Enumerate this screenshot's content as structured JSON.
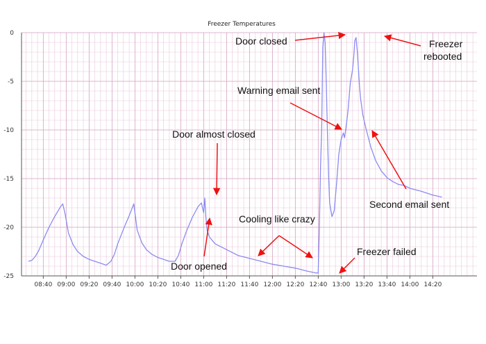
{
  "chart_data": {
    "type": "line",
    "title": "Freezer Temperatures",
    "xlabel": "",
    "ylabel": "",
    "ylim": [
      -25,
      0
    ],
    "y_ticks": [
      0,
      -5,
      -10,
      -15,
      -20,
      -25
    ],
    "x_tick_labels": [
      "08:40",
      "09:00",
      "09:20",
      "09:40",
      "10:00",
      "10:20",
      "10:40",
      "11:00",
      "11:20",
      "11:40",
      "12:00",
      "12:20",
      "12:40",
      "13:00",
      "13:20",
      "13:40",
      "14:00",
      "14:20"
    ],
    "grid": true,
    "colors": {
      "line": "#8a8af0",
      "arrow": "#ee1111",
      "grid": "#e8c8dc"
    },
    "series": [
      {
        "x": [
          "08:27",
          "08:30",
          "08:33",
          "08:36",
          "08:40",
          "08:45",
          "08:50",
          "08:55",
          "08:57",
          "08:59",
          "09:02",
          "09:06",
          "09:10",
          "09:15",
          "09:20",
          "09:25",
          "09:30",
          "09:35",
          "09:39",
          "09:42",
          "09:45",
          "09:50",
          "09:55",
          "09:59",
          "10:02",
          "10:06",
          "10:10",
          "10:15",
          "10:20",
          "10:25",
          "10:30",
          "10:35",
          "10:38",
          "10:41",
          "10:45",
          "10:50",
          "10:55",
          "10:58",
          "11:00",
          "11:01",
          "11:02",
          "11:03",
          "11:05",
          "11:10",
          "11:20",
          "11:30",
          "11:40",
          "11:50",
          "12:00",
          "12:10",
          "12:20",
          "12:30",
          "12:38",
          "12:40",
          "12:41",
          "12:42",
          "12:43",
          "12:44",
          "12:45",
          "12:46",
          "12:47",
          "12:48",
          "12:49",
          "12:50",
          "12:52",
          "12:54",
          "12:56",
          "12:58",
          "13:00",
          "13:02",
          "13:03",
          "13:04",
          "13:06",
          "13:08",
          "13:10",
          "13:11",
          "13:12",
          "13:13",
          "13:14",
          "13:15",
          "13:16",
          "13:17",
          "13:19",
          "13:22",
          "13:26",
          "13:30",
          "13:35",
          "13:40",
          "13:45",
          "13:50",
          "13:55",
          "14:00",
          "14:10",
          "14:20",
          "14:28"
        ],
        "y": [
          -23.5,
          -23.4,
          -23.0,
          -22.4,
          -21.3,
          -20.0,
          -18.9,
          -17.9,
          -17.6,
          -18.6,
          -20.6,
          -21.8,
          -22.5,
          -23.0,
          -23.3,
          -23.5,
          -23.7,
          -23.9,
          -23.5,
          -22.8,
          -21.7,
          -20.2,
          -18.8,
          -17.6,
          -20.3,
          -21.6,
          -22.3,
          -22.8,
          -23.1,
          -23.3,
          -23.5,
          -23.5,
          -22.9,
          -21.7,
          -20.4,
          -19.0,
          -17.9,
          -17.5,
          -18.5,
          -17.0,
          -19.0,
          -20.3,
          -21.0,
          -21.7,
          -22.3,
          -22.9,
          -23.2,
          -23.5,
          -23.8,
          -24.0,
          -24.2,
          -24.5,
          -24.7,
          -24.7,
          -20.0,
          -14.0,
          -10.0,
          -1.5,
          0,
          -1.0,
          -5.0,
          -10.0,
          -14.5,
          -17.5,
          -18.9,
          -18.3,
          -15.5,
          -12.5,
          -11.0,
          -10.3,
          -10.8,
          -10.0,
          -8.0,
          -5.2,
          -3.8,
          -2.5,
          -0.8,
          -0.5,
          -1.8,
          -3.5,
          -5.5,
          -6.8,
          -8.5,
          -10.0,
          -11.8,
          -13.1,
          -14.2,
          -14.9,
          -15.3,
          -15.6,
          -15.7,
          -16.0,
          -16.3,
          -16.7,
          -16.9
        ]
      }
    ],
    "annotations": [
      {
        "text": "Door closed"
      },
      {
        "text": "Freezer rebooted"
      },
      {
        "text": "Warning email sent"
      },
      {
        "text": "Door almost closed"
      },
      {
        "text": "Second email sent"
      },
      {
        "text": "Cooling like crazy"
      },
      {
        "text": "Door opened"
      },
      {
        "text": "Freezer failed"
      }
    ]
  }
}
